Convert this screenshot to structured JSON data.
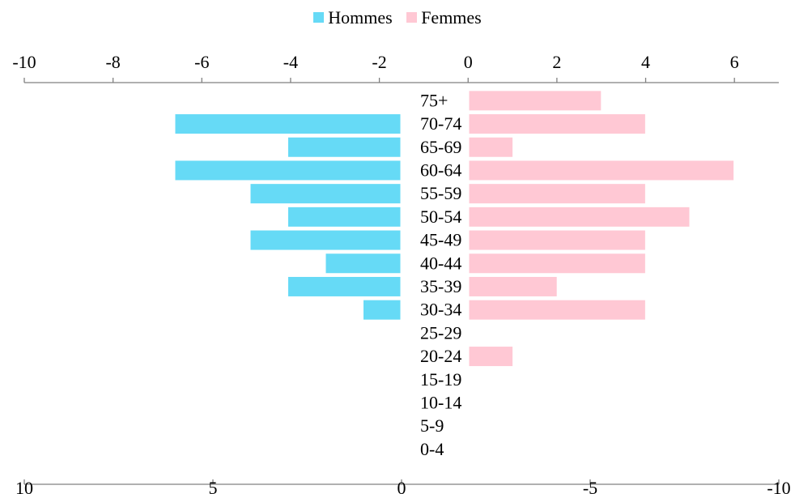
{
  "legend": {
    "male_label": "Hommes",
    "female_label": "Femmes"
  },
  "colors": {
    "male": "#66DAF6",
    "female": "#FFC8D4",
    "axis": "#808080"
  },
  "chart_data": {
    "type": "bar",
    "orientation": "horizontal",
    "categories": [
      "75+",
      "70-74",
      "65-69",
      "60-64",
      "55-59",
      "50-54",
      "45-49",
      "40-44",
      "35-39",
      "30-34",
      "25-29",
      "20-24",
      "15-19",
      "10-14",
      "5-9",
      "0-4"
    ],
    "series": [
      {
        "name": "Hommes",
        "values": [
          0,
          6,
          3,
          6,
          4,
          3,
          4,
          2,
          3,
          1,
          0,
          0,
          0,
          0,
          0,
          0
        ]
      },
      {
        "name": "Femmes",
        "values": [
          3,
          4,
          1,
          6,
          4,
          5,
          4,
          4,
          2,
          4,
          0,
          1,
          0,
          0,
          0,
          0
        ]
      }
    ],
    "top_axis": {
      "ticks": [
        "-10",
        "-8",
        "-6",
        "-4",
        "-2",
        "0",
        "2",
        "4",
        "6"
      ],
      "range": [
        -10,
        7
      ]
    },
    "bottom_axis": {
      "ticks": [
        "10",
        "5",
        "0",
        "-5",
        "-10"
      ],
      "range": [
        10,
        -10
      ]
    },
    "legend_position": "top-center",
    "grid": false
  }
}
